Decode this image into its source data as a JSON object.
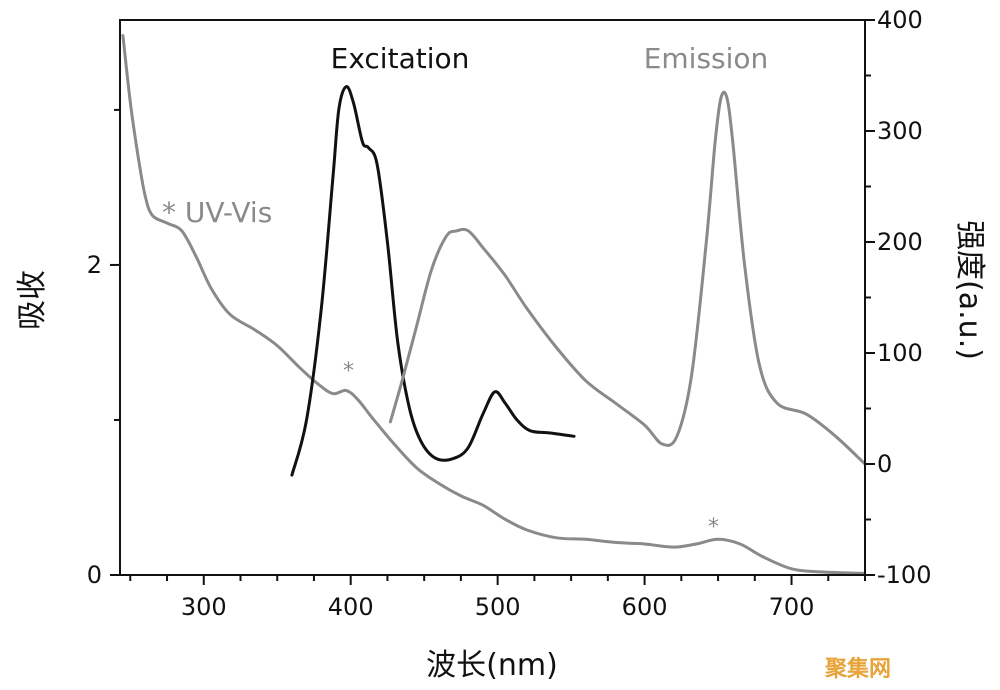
{
  "chart_data": {
    "type": "line",
    "xlabel": "波长(nm)",
    "ylabel_left": "吸收",
    "ylabel_right": "强度(a.u.)",
    "xlim": [
      243,
      750
    ],
    "ylim_left": [
      0,
      3.58
    ],
    "ylim_right": [
      -100,
      400
    ],
    "x_ticks": [
      300,
      400,
      500,
      600,
      700
    ],
    "y_left_ticks": [
      0,
      2
    ],
    "y_right_ticks": [
      -100,
      0,
      100,
      200,
      300,
      400
    ],
    "grid": false,
    "series": [
      {
        "name": "UV-Vis",
        "axis": "left",
        "color": "#8a8a8a",
        "points": [
          [
            245,
            3.48
          ],
          [
            250,
            3.05
          ],
          [
            255,
            2.72
          ],
          [
            260,
            2.45
          ],
          [
            265,
            2.32
          ],
          [
            275,
            2.27
          ],
          [
            285,
            2.22
          ],
          [
            295,
            2.05
          ],
          [
            305,
            1.85
          ],
          [
            318,
            1.68
          ],
          [
            335,
            1.58
          ],
          [
            350,
            1.48
          ],
          [
            365,
            1.34
          ],
          [
            378,
            1.23
          ],
          [
            388,
            1.17
          ],
          [
            397,
            1.19
          ],
          [
            405,
            1.13
          ],
          [
            415,
            1.01
          ],
          [
            430,
            0.84
          ],
          [
            445,
            0.69
          ],
          [
            460,
            0.59
          ],
          [
            475,
            0.51
          ],
          [
            490,
            0.45
          ],
          [
            505,
            0.36
          ],
          [
            520,
            0.29
          ],
          [
            540,
            0.24
          ],
          [
            560,
            0.23
          ],
          [
            580,
            0.21
          ],
          [
            600,
            0.2
          ],
          [
            620,
            0.18
          ],
          [
            635,
            0.2
          ],
          [
            650,
            0.23
          ],
          [
            665,
            0.2
          ],
          [
            680,
            0.12
          ],
          [
            700,
            0.04
          ],
          [
            720,
            0.02
          ],
          [
            750,
            0.01
          ]
        ]
      },
      {
        "name": "Excitation",
        "axis": "right",
        "color": "#111111",
        "points": [
          [
            360,
            -10
          ],
          [
            370,
            40
          ],
          [
            380,
            140
          ],
          [
            388,
            260
          ],
          [
            392,
            320
          ],
          [
            397,
            340
          ],
          [
            402,
            325
          ],
          [
            408,
            290
          ],
          [
            412,
            285
          ],
          [
            418,
            270
          ],
          [
            425,
            200
          ],
          [
            432,
            110
          ],
          [
            440,
            50
          ],
          [
            448,
            20
          ],
          [
            458,
            5
          ],
          [
            470,
            5
          ],
          [
            480,
            15
          ],
          [
            490,
            45
          ],
          [
            498,
            65
          ],
          [
            505,
            55
          ],
          [
            513,
            40
          ],
          [
            522,
            30
          ],
          [
            535,
            28
          ],
          [
            552,
            25
          ]
        ]
      },
      {
        "name": "Emission",
        "axis": "right",
        "color": "#8a8a8a",
        "points": [
          [
            427,
            38
          ],
          [
            435,
            75
          ],
          [
            445,
            125
          ],
          [
            455,
            175
          ],
          [
            465,
            205
          ],
          [
            472,
            210
          ],
          [
            480,
            210
          ],
          [
            490,
            195
          ],
          [
            505,
            170
          ],
          [
            520,
            140
          ],
          [
            540,
            105
          ],
          [
            560,
            75
          ],
          [
            580,
            55
          ],
          [
            600,
            35
          ],
          [
            612,
            18
          ],
          [
            622,
            25
          ],
          [
            632,
            80
          ],
          [
            642,
            200
          ],
          [
            648,
            290
          ],
          [
            652,
            330
          ],
          [
            656,
            330
          ],
          [
            660,
            290
          ],
          [
            668,
            180
          ],
          [
            678,
            90
          ],
          [
            690,
            55
          ],
          [
            710,
            45
          ],
          [
            730,
            25
          ],
          [
            750,
            0
          ]
        ]
      }
    ],
    "annotations": [
      {
        "text": "Excitation",
        "color": "#111111"
      },
      {
        "text": "Emission",
        "color": "#8a8a8a"
      },
      {
        "text": "* UV-Vis",
        "color": "#8a8a8a"
      },
      {
        "text": "*",
        "color": "#8a8a8a"
      },
      {
        "text": "*",
        "color": "#8a8a8a"
      }
    ]
  },
  "watermark": "聚集网"
}
